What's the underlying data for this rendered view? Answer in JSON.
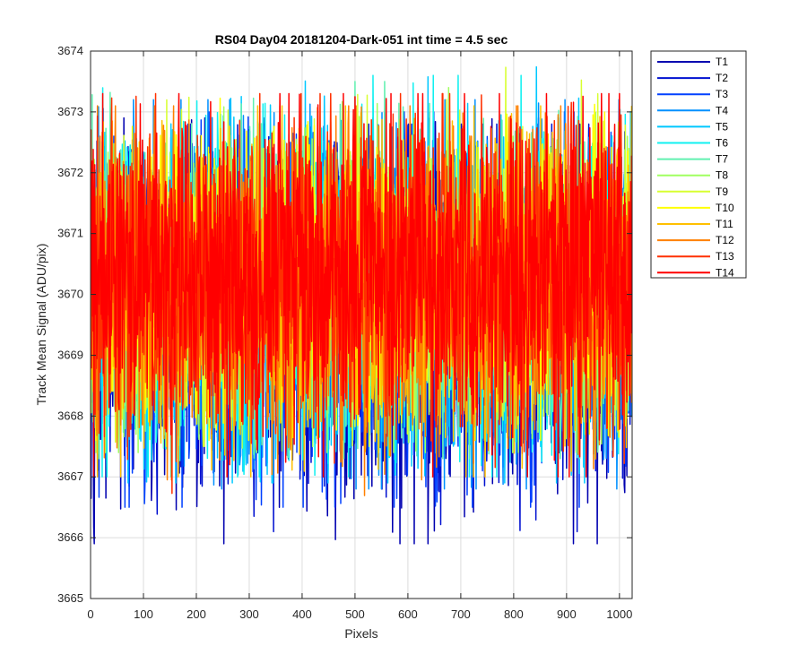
{
  "chart_data": {
    "type": "line",
    "title": "RS04 Day04 20181204-Dark-051 int time = 4.5 sec",
    "xlabel": "Pixels",
    "ylabel": "Track Mean Signal (ADU/pix)",
    "xlim": [
      0,
      1024
    ],
    "ylim": [
      3665,
      3674
    ],
    "xticks": [
      0,
      100,
      200,
      300,
      400,
      500,
      600,
      700,
      800,
      900,
      1000
    ],
    "yticks": [
      3665,
      3666,
      3667,
      3668,
      3669,
      3670,
      3671,
      3672,
      3673,
      3674
    ],
    "grid": true,
    "legend_position": "outside-top-right",
    "points_per_series": 1024,
    "series": [
      {
        "name": "T1",
        "color": "#0000b0",
        "mean": 3669.6,
        "min": 3665.9,
        "max": 3672.9
      },
      {
        "name": "T2",
        "color": "#0010d0",
        "mean": 3669.7,
        "min": 3666.1,
        "max": 3672.8
      },
      {
        "name": "T3",
        "color": "#0040ff",
        "mean": 3669.8,
        "min": 3666.5,
        "max": 3673.0
      },
      {
        "name": "T4",
        "color": "#0090ff",
        "mean": 3669.9,
        "min": 3666.8,
        "max": 3673.2
      },
      {
        "name": "T5",
        "color": "#00c8ff",
        "mean": 3670.0,
        "min": 3666.9,
        "max": 3673.96
      },
      {
        "name": "T6",
        "color": "#10f0f0",
        "mean": 3670.0,
        "min": 3667.0,
        "max": 3673.6
      },
      {
        "name": "T7",
        "color": "#60f0b0",
        "mean": 3670.1,
        "min": 3667.3,
        "max": 3673.5
      },
      {
        "name": "T8",
        "color": "#a0ff60",
        "mean": 3670.1,
        "min": 3667.4,
        "max": 3673.4
      },
      {
        "name": "T9",
        "color": "#d8ff30",
        "mean": 3670.2,
        "min": 3667.5,
        "max": 3673.8
      },
      {
        "name": "T10",
        "color": "#ffff00",
        "mean": 3670.2,
        "min": 3667.6,
        "max": 3673.4
      },
      {
        "name": "T11",
        "color": "#ffc000",
        "mean": 3670.2,
        "min": 3667.0,
        "max": 3673.1
      },
      {
        "name": "T12",
        "color": "#ff8000",
        "mean": 3670.2,
        "min": 3666.6,
        "max": 3673.1
      },
      {
        "name": "T13",
        "color": "#ff3000",
        "mean": 3670.3,
        "min": 3666.6,
        "max": 3673.3
      },
      {
        "name": "T14",
        "color": "#ff0000",
        "mean": 3670.3,
        "min": 3667.0,
        "max": 3673.3
      }
    ]
  }
}
